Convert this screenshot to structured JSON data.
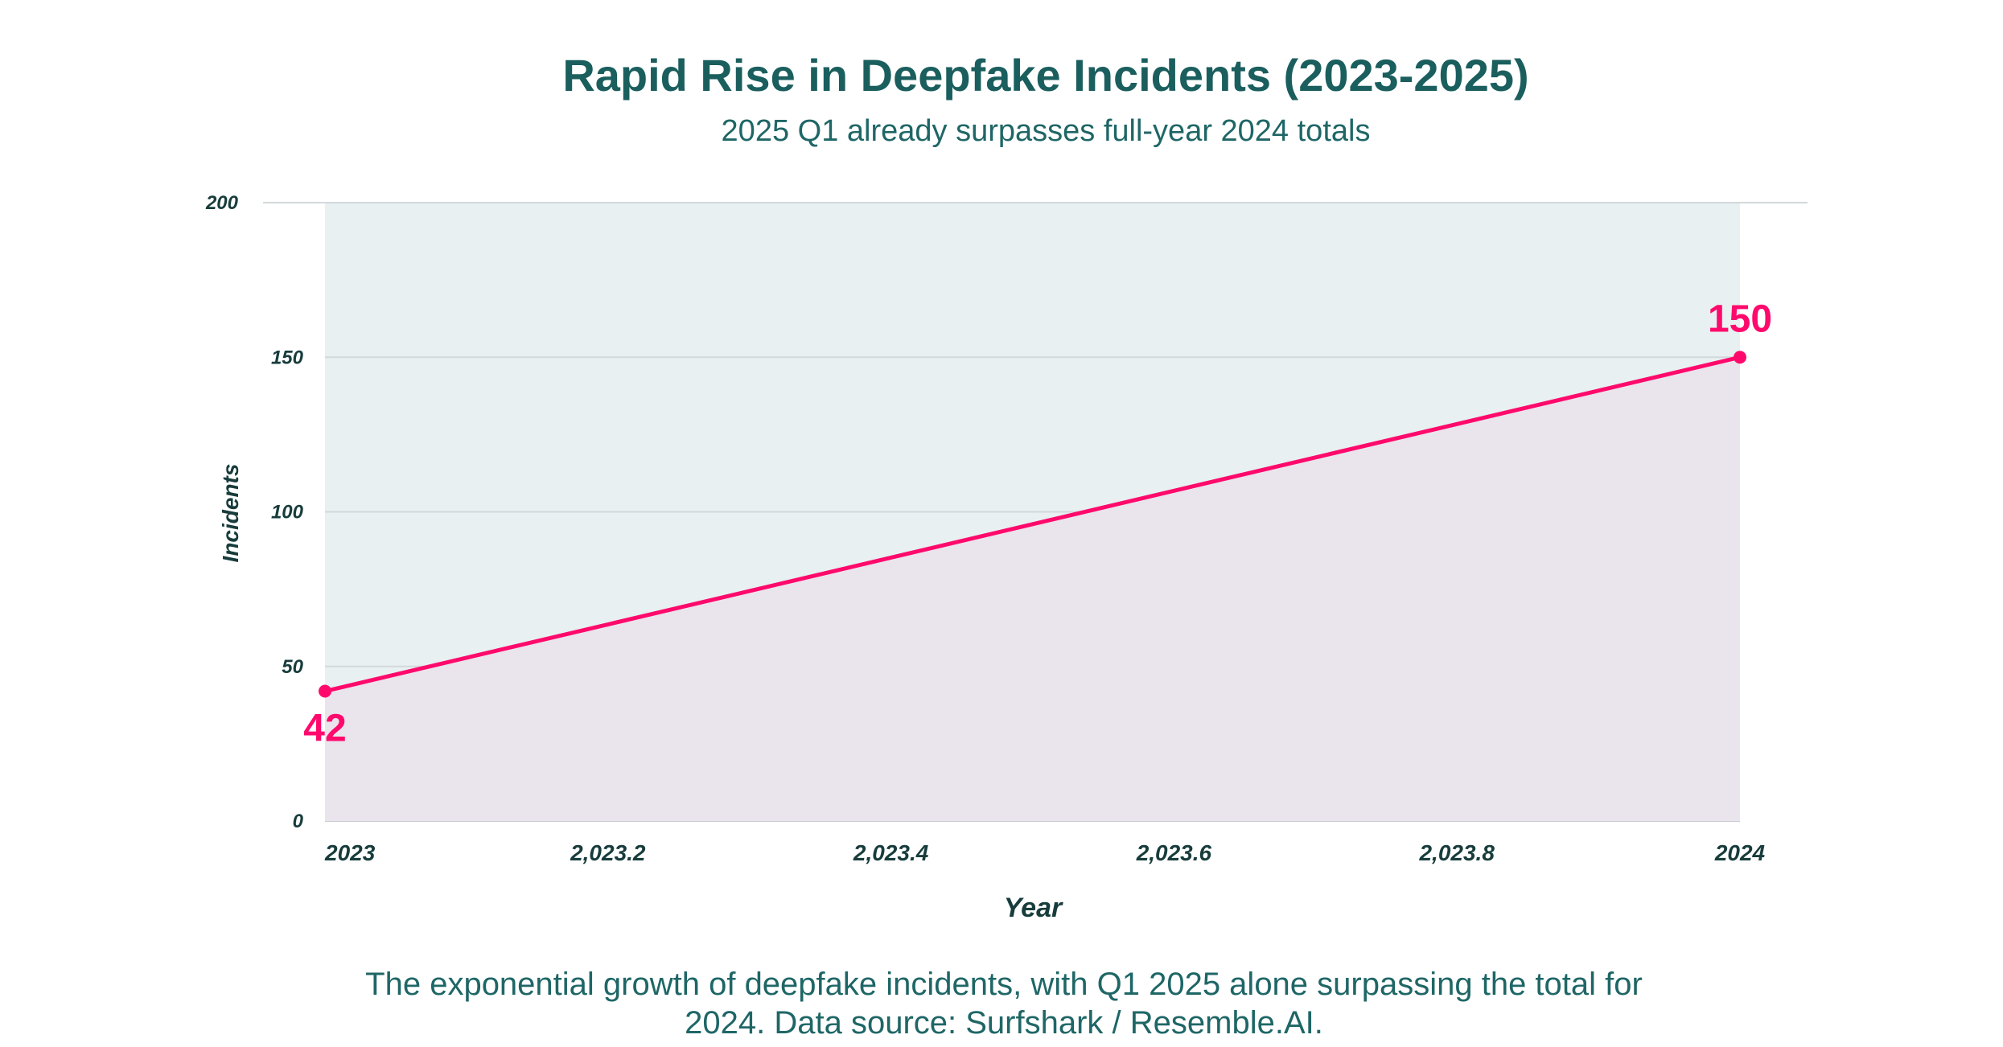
{
  "chart_data": {
    "type": "area",
    "title": "Rapid Rise in Deepfake Incidents (2023-2025)",
    "subtitle": "2025 Q1 already surpasses full-year 2024 totals",
    "xlabel": "Year",
    "ylabel": "Incidents",
    "x": [
      2023,
      2024
    ],
    "series": [
      {
        "name": "Incidents",
        "values": [
          42,
          150
        ],
        "color": "#ff0a6c"
      }
    ],
    "data_labels": [
      "42",
      "150"
    ],
    "xlim": [
      2023,
      2024
    ],
    "ylim": [
      0,
      200
    ],
    "x_ticks": [
      2023,
      2023.2,
      2023.4,
      2023.6,
      2023.8,
      2024
    ],
    "x_tick_labels": [
      "2023",
      "2,023.2",
      "2,023.4",
      "2,023.6",
      "2,023.8",
      "2024"
    ],
    "y_ticks": [
      0,
      50,
      100,
      150,
      200
    ],
    "y_tick_labels": [
      "0",
      "50",
      "100",
      "150",
      "200"
    ],
    "grid": true,
    "colors": {
      "plot_bg": "#e8f0f1",
      "area_fill": "#eae4ec",
      "line": "#ff0a6c",
      "text": "#1b5e5e"
    },
    "caption": [
      "The exponential growth of deepfake incidents, with Q1 2025 alone surpassing the total for",
      "2024. Data source: Surfshark / Resemble.AI."
    ]
  }
}
